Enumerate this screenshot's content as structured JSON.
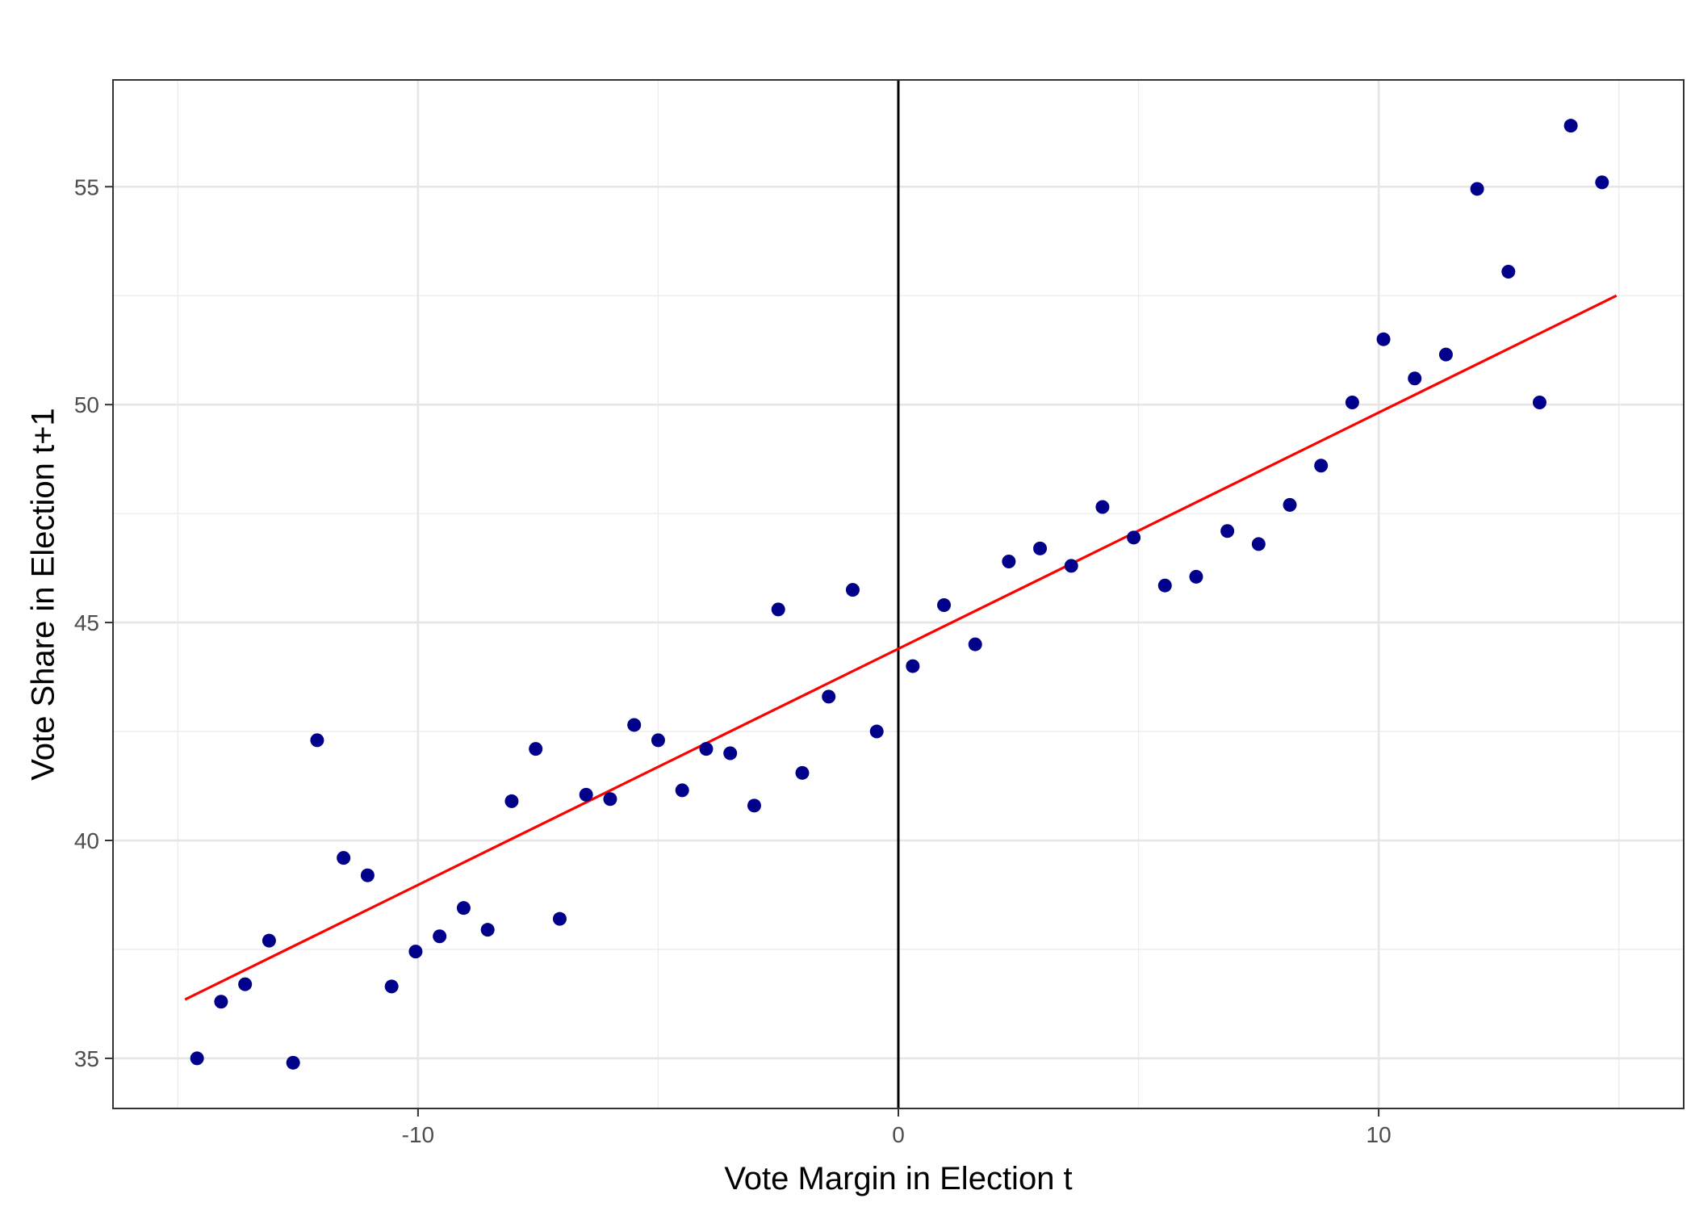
{
  "chart_data": {
    "type": "scatter",
    "title": "",
    "xlabel": "Vote Margin in Election t",
    "ylabel": "Vote Share in Election t+1",
    "xlim": [
      -16.35,
      16.35
    ],
    "ylim": [
      33.85,
      57.45
    ],
    "x_ticks": [
      {
        "value": -10,
        "label": "-10"
      },
      {
        "value": 0,
        "label": "0"
      },
      {
        "value": 10,
        "label": "10"
      }
    ],
    "y_ticks": [
      {
        "value": 35,
        "label": "35"
      },
      {
        "value": 40,
        "label": "40"
      },
      {
        "value": 45,
        "label": "45"
      },
      {
        "value": 50,
        "label": "50"
      },
      {
        "value": 55,
        "label": "55"
      }
    ],
    "x_minor_grid": [
      -15,
      -5,
      5,
      15
    ],
    "y_minor_grid": [
      37.5,
      42.5,
      47.5,
      52.5
    ],
    "grid": true,
    "legend": "none",
    "vline": {
      "x": 0,
      "color": "#000000"
    },
    "point_color": "#00008B",
    "line_color": "#FF0000",
    "fit_line": {
      "x": [
        -14.85,
        14.95
      ],
      "y": [
        36.35,
        52.5
      ]
    },
    "points": [
      {
        "x": -14.6,
        "y": 35.0
      },
      {
        "x": -14.1,
        "y": 36.3
      },
      {
        "x": -13.6,
        "y": 36.7
      },
      {
        "x": -13.1,
        "y": 37.7
      },
      {
        "x": -12.6,
        "y": 34.9
      },
      {
        "x": -12.1,
        "y": 42.3
      },
      {
        "x": -11.55,
        "y": 39.6
      },
      {
        "x": -11.05,
        "y": 39.2
      },
      {
        "x": -10.55,
        "y": 36.65
      },
      {
        "x": -10.05,
        "y": 37.45
      },
      {
        "x": -9.55,
        "y": 37.8
      },
      {
        "x": -9.05,
        "y": 38.45
      },
      {
        "x": -8.55,
        "y": 37.95
      },
      {
        "x": -8.05,
        "y": 40.9
      },
      {
        "x": -7.55,
        "y": 42.1
      },
      {
        "x": -7.05,
        "y": 38.2
      },
      {
        "x": -6.5,
        "y": 41.05
      },
      {
        "x": -6.0,
        "y": 40.95
      },
      {
        "x": -5.5,
        "y": 42.65
      },
      {
        "x": -5.0,
        "y": 42.3
      },
      {
        "x": -4.5,
        "y": 41.15
      },
      {
        "x": -4.0,
        "y": 42.1
      },
      {
        "x": -3.5,
        "y": 42.0
      },
      {
        "x": -3.0,
        "y": 40.8
      },
      {
        "x": -2.5,
        "y": 45.3
      },
      {
        "x": -2.0,
        "y": 41.55
      },
      {
        "x": -1.45,
        "y": 43.3
      },
      {
        "x": -0.95,
        "y": 45.75
      },
      {
        "x": -0.45,
        "y": 42.5
      },
      {
        "x": 0.3,
        "y": 44.0
      },
      {
        "x": 0.95,
        "y": 45.4
      },
      {
        "x": 1.6,
        "y": 44.5
      },
      {
        "x": 2.3,
        "y": 46.4
      },
      {
        "x": 2.95,
        "y": 46.7
      },
      {
        "x": 3.6,
        "y": 46.3
      },
      {
        "x": 4.25,
        "y": 47.65
      },
      {
        "x": 4.9,
        "y": 46.95
      },
      {
        "x": 5.55,
        "y": 45.85
      },
      {
        "x": 6.2,
        "y": 46.05
      },
      {
        "x": 6.85,
        "y": 47.1
      },
      {
        "x": 7.5,
        "y": 46.8
      },
      {
        "x": 8.15,
        "y": 47.7
      },
      {
        "x": 8.8,
        "y": 48.6
      },
      {
        "x": 9.45,
        "y": 50.05
      },
      {
        "x": 10.1,
        "y": 51.5
      },
      {
        "x": 10.75,
        "y": 50.6
      },
      {
        "x": 11.4,
        "y": 51.15
      },
      {
        "x": 12.05,
        "y": 54.95
      },
      {
        "x": 12.7,
        "y": 53.05
      },
      {
        "x": 13.35,
        "y": 50.05
      },
      {
        "x": 14.0,
        "y": 56.4
      },
      {
        "x": 14.65,
        "y": 55.1
      }
    ]
  }
}
